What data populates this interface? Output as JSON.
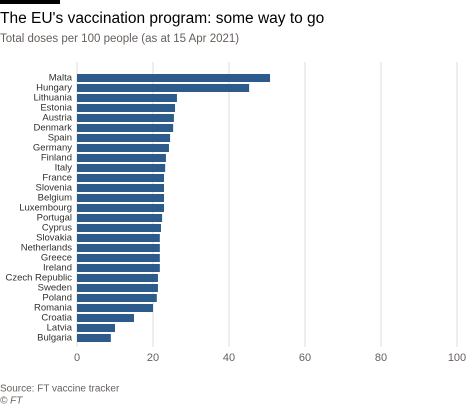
{
  "chart_data": {
    "type": "hbar",
    "title": "The EU's vaccination program: some way to go",
    "subtitle": "Total doses per 100 people (as at 15 Apr 2021)",
    "source": "Source: FT vaccine tracker",
    "credit": "© FT",
    "categories": [
      "Malta",
      "Hungary",
      "Lithuania",
      "Estonia",
      "Austria",
      "Denmark",
      "Spain",
      "Germany",
      "Finland",
      "Italy",
      "France",
      "Slovenia",
      "Belgium",
      "Luxembourg",
      "Portugal",
      "Cyprus",
      "Slovakia",
      "Netherlands",
      "Greece",
      "Ireland",
      "Czech Republic",
      "Sweden",
      "Poland",
      "Romania",
      "Croatia",
      "Latvia",
      "Bulgaria"
    ],
    "values": [
      50.8,
      45.3,
      26.3,
      25.8,
      25.5,
      25.3,
      24.5,
      24.2,
      23.4,
      23.2,
      22.9,
      22.9,
      22.9,
      22.9,
      22.4,
      22.1,
      21.8,
      21.8,
      21.8,
      21.8,
      21.3,
      21.3,
      21,
      20,
      15,
      10,
      8.9
    ],
    "color": "#2c5b8c",
    "xlim": [
      0,
      100
    ],
    "xticks": [
      0,
      20,
      40,
      60,
      80,
      100
    ],
    "grid": true
  }
}
